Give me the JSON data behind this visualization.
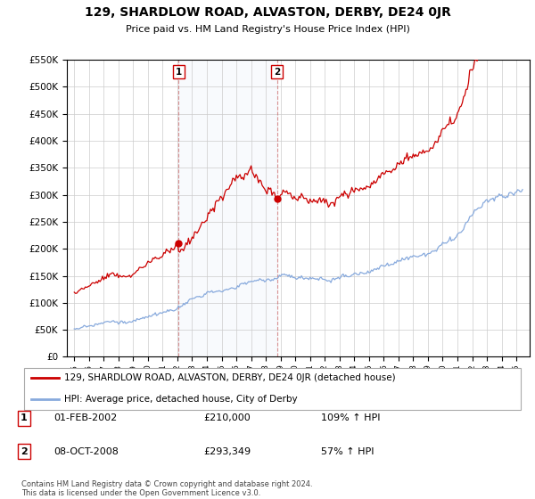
{
  "title": "129, SHARDLOW ROAD, ALVASTON, DERBY, DE24 0JR",
  "subtitle": "Price paid vs. HM Land Registry's House Price Index (HPI)",
  "sale1_price": 210000,
  "sale1_pct": "109% ↑ HPI",
  "sale1_display": "01-FEB-2002",
  "sale2_price": 293349,
  "sale2_pct": "57% ↑ HPI",
  "sale2_display": "08-OCT-2008",
  "legend_property": "129, SHARDLOW ROAD, ALVASTON, DERBY, DE24 0JR (detached house)",
  "legend_hpi": "HPI: Average price, detached house, City of Derby",
  "footer": "Contains HM Land Registry data © Crown copyright and database right 2024.\nThis data is licensed under the Open Government Licence v3.0.",
  "line_color_property": "#cc0000",
  "line_color_hpi": "#88aadd",
  "shade_color": "#dde8f5",
  "ylim_min": 0,
  "ylim_max": 550000,
  "background_color": "#ffffff",
  "grid_color": "#cccccc"
}
